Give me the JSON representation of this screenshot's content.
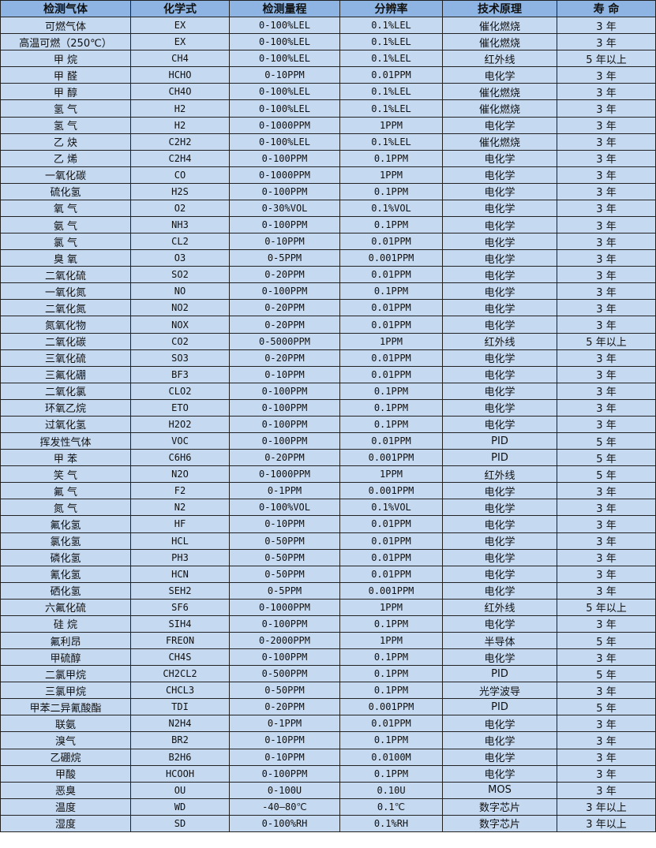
{
  "colors": {
    "header_bg": "#8db4e2",
    "row_bg": "#c5d9f1"
  },
  "headers": [
    "检测气体",
    "化学式",
    "检测量程",
    "分辨率",
    "技术原理",
    "寿 命"
  ],
  "rows": [
    [
      "可燃气体",
      "EX",
      "0-100%LEL",
      "0.1%LEL",
      "催化燃烧",
      "3 年"
    ],
    [
      "高温可燃（250℃）",
      "EX",
      "0-100%LEL",
      "0.1%LEL",
      "催化燃烧",
      "3 年"
    ],
    [
      "甲 烷",
      "CH4",
      "0-100%LEL",
      "0.1%LEL",
      "红外线",
      "5 年以上"
    ],
    [
      "甲 醛",
      "HCHO",
      "0-10PPM",
      "0.01PPM",
      "电化学",
      "3 年"
    ],
    [
      "甲 醇",
      "CH4O",
      "0-100%LEL",
      "0.1%LEL",
      "催化燃烧",
      "3 年"
    ],
    [
      "氢 气",
      "H2",
      "0-100%LEL",
      "0.1%LEL",
      "催化燃烧",
      "3 年"
    ],
    [
      "氢 气",
      "H2",
      "0-1000PPM",
      "1PPM",
      "电化学",
      "3 年"
    ],
    [
      "乙 炔",
      "C2H2",
      "0-100%LEL",
      "0.1%LEL",
      "催化燃烧",
      "3 年"
    ],
    [
      "乙 烯",
      "C2H4",
      "0-100PPM",
      "0.1PPM",
      "电化学",
      "3 年"
    ],
    [
      "一氧化碳",
      "CO",
      "0-1000PPM",
      "1PPM",
      "电化学",
      "3 年"
    ],
    [
      "硫化氢",
      "H2S",
      "0-100PPM",
      "0.1PPM",
      "电化学",
      "3 年"
    ],
    [
      "氧 气",
      "O2",
      "0-30%VOL",
      "0.1%VOL",
      "电化学",
      "3 年"
    ],
    [
      "氨 气",
      "NH3",
      "0-100PPM",
      "0.1PPM",
      "电化学",
      "3 年"
    ],
    [
      "氯 气",
      "CL2",
      "0-10PPM",
      "0.01PPM",
      "电化学",
      "3 年"
    ],
    [
      "臭 氧",
      "O3",
      "0-5PPM",
      "0.001PPM",
      "电化学",
      "3 年"
    ],
    [
      "二氧化硫",
      "SO2",
      "0-20PPM",
      "0.01PPM",
      "电化学",
      "3 年"
    ],
    [
      "一氧化氮",
      "NO",
      "0-100PPM",
      "0.1PPM",
      "电化学",
      "3 年"
    ],
    [
      "二氧化氮",
      "NO2",
      "0-20PPM",
      "0.01PPM",
      "电化学",
      "3 年"
    ],
    [
      "氮氧化物",
      "NOX",
      "0-20PPM",
      "0.01PPM",
      "电化学",
      "3 年"
    ],
    [
      "二氧化碳",
      "CO2",
      "0-5000PPM",
      "1PPM",
      "红外线",
      "5 年以上"
    ],
    [
      "三氧化硫",
      "SO3",
      "0-20PPM",
      "0.01PPM",
      "电化学",
      "3 年"
    ],
    [
      "三氟化硼",
      "BF3",
      "0-10PPM",
      "0.01PPM",
      "电化学",
      "3 年"
    ],
    [
      "二氧化氯",
      "CLO2",
      "0-100PPM",
      "0.1PPM",
      "电化学",
      "3 年"
    ],
    [
      "环氧乙烷",
      "ETO",
      "0-100PPM",
      "0.1PPM",
      "电化学",
      "3 年"
    ],
    [
      "过氧化氢",
      "H2O2",
      "0-100PPM",
      "0.1PPM",
      "电化学",
      "3 年"
    ],
    [
      "挥发性气体",
      "VOC",
      "0-100PPM",
      "0.01PPM",
      "PID",
      "5 年"
    ],
    [
      "甲 苯",
      "C6H6",
      "0-20PPM",
      "0.001PPM",
      "PID",
      "5 年"
    ],
    [
      "笑 气",
      "N2O",
      "0-1000PPM",
      "1PPM",
      "红外线",
      "5 年"
    ],
    [
      "氟 气",
      "F2",
      "0-1PPM",
      "0.001PPM",
      "电化学",
      "3 年"
    ],
    [
      "氮 气",
      "N2",
      "0-100%VOL",
      "0.1%VOL",
      "电化学",
      "3 年"
    ],
    [
      "氟化氢",
      "HF",
      "0-10PPM",
      "0.01PPM",
      "电化学",
      "3 年"
    ],
    [
      "氯化氢",
      "HCL",
      "0-50PPM",
      "0.01PPM",
      "电化学",
      "3 年"
    ],
    [
      "磷化氢",
      "PH3",
      "0-50PPM",
      "0.01PPM",
      "电化学",
      "3 年"
    ],
    [
      "氰化氢",
      "HCN",
      "0-50PPM",
      "0.01PPM",
      "电化学",
      "3 年"
    ],
    [
      "硒化氢",
      "SEH2",
      "0-5PPM",
      "0.001PPM",
      "电化学",
      "3 年"
    ],
    [
      "六氟化硫",
      "SF6",
      "0-1000PPM",
      "1PPM",
      "红外线",
      "5 年以上"
    ],
    [
      "硅 烷",
      "SIH4",
      "0-100PPM",
      "0.1PPM",
      "电化学",
      "3 年"
    ],
    [
      "氟利昂",
      "FREON",
      "0-2000PPM",
      "1PPM",
      "半导体",
      "5 年"
    ],
    [
      "甲硫醇",
      "CH4S",
      "0-100PPM",
      "0.1PPM",
      "电化学",
      "3 年"
    ],
    [
      "二氯甲烷",
      "CH2CL2",
      "0-500PPM",
      "0.1PPM",
      "PID",
      "5 年"
    ],
    [
      "三氯甲烷",
      "CHCL3",
      "0-50PPM",
      "0.1PPM",
      "光学波导",
      "3 年"
    ],
    [
      "甲苯二异氰酸酯",
      "TDI",
      "0-20PPM",
      "0.001PPM",
      "PID",
      "5 年"
    ],
    [
      "联氨",
      "N2H4",
      "0-1PPM",
      "0.01PPM",
      "电化学",
      "3 年"
    ],
    [
      "溴气",
      "BR2",
      "0-10PPM",
      "0.1PPM",
      "电化学",
      "3 年"
    ],
    [
      "乙硼烷",
      "B2H6",
      "0-10PPM",
      "0.0100M",
      "电化学",
      "3 年"
    ],
    [
      "甲酸",
      "HCOOH",
      "0-100PPM",
      "0.1PPM",
      "电化学",
      "3 年"
    ],
    [
      "恶臭",
      "OU",
      "0-100U",
      "0.10U",
      "MOS",
      "3 年"
    ],
    [
      "温度",
      "WD",
      "-40—80℃",
      "0.1℃",
      "数字芯片",
      "3 年以上"
    ],
    [
      "湿度",
      "SD",
      "0-100%RH",
      "0.1%RH",
      "数字芯片",
      "3 年以上"
    ]
  ]
}
